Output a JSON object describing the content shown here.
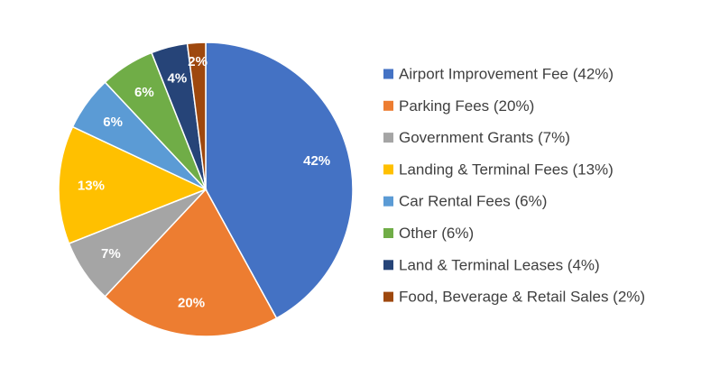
{
  "chart_data": {
    "type": "pie",
    "title": "",
    "legend_position": "right",
    "start_angle_deg": 0,
    "direction": "clockwise",
    "slices": [
      {
        "name": "Airport Improvement Fee",
        "value": 42,
        "label": "42%",
        "legend": "Airport Improvement Fee (42%)",
        "color": "#4472C4"
      },
      {
        "name": "Parking Fees",
        "value": 20,
        "label": "20%",
        "legend": "Parking Fees (20%)",
        "color": "#ED7D31"
      },
      {
        "name": "Government Grants",
        "value": 7,
        "label": "7%",
        "legend": "Government Grants (7%)",
        "color": "#A5A5A5"
      },
      {
        "name": "Landing & Terminal Fees",
        "value": 13,
        "label": "13%",
        "legend": "Landing & Terminal Fees (13%)",
        "color": "#FFC000"
      },
      {
        "name": "Car Rental Fees",
        "value": 6,
        "label": "6%",
        "legend": "Car Rental Fees (6%)",
        "color": "#5B9BD5"
      },
      {
        "name": "Other",
        "value": 6,
        "label": "6%",
        "legend": "Other (6%)",
        "color": "#70AD47"
      },
      {
        "name": "Land & Terminal Leases",
        "value": 4,
        "label": "4%",
        "legend": "Land & Terminal Leases (4%)",
        "color": "#264478"
      },
      {
        "name": "Food, Beverage & Retail Sales",
        "value": 2,
        "label": "2%",
        "legend": "Food, Beverage & Retail Sales (2%)",
        "color": "#9E480E"
      }
    ]
  }
}
